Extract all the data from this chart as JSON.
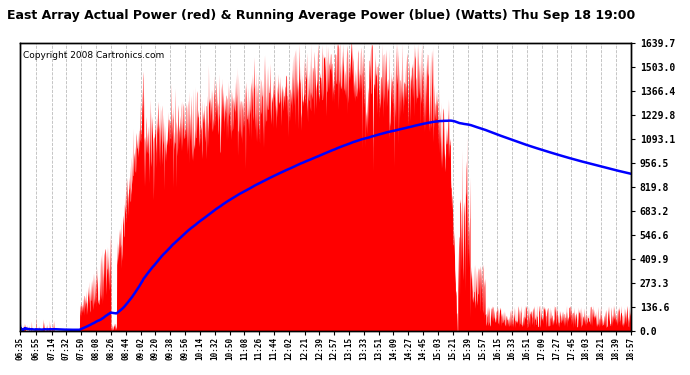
{
  "title": "East Array Actual Power (red) & Running Average Power (blue) (Watts) Thu Sep 18 19:00",
  "copyright": "Copyright 2008 Cartronics.com",
  "ylabel_right_values": [
    1639.7,
    1503.0,
    1366.4,
    1229.8,
    1093.1,
    956.5,
    819.8,
    683.2,
    546.6,
    409.9,
    273.3,
    136.6,
    0.0
  ],
  "ymax": 1639.7,
  "ymin": 0.0,
  "background_color": "#ffffff",
  "grid_color": "#bbbbbb",
  "actual_color": "#ff0000",
  "avg_color": "#0000ff",
  "title_fontsize": 9,
  "copyright_fontsize": 6.5,
  "x_tick_labels": [
    "06:35",
    "06:55",
    "07:14",
    "07:32",
    "07:50",
    "08:08",
    "08:26",
    "08:44",
    "09:02",
    "09:20",
    "09:38",
    "09:56",
    "10:14",
    "10:32",
    "10:50",
    "11:08",
    "11:26",
    "11:44",
    "12:02",
    "12:21",
    "12:39",
    "12:57",
    "13:15",
    "13:33",
    "13:51",
    "14:09",
    "14:27",
    "14:45",
    "15:03",
    "15:21",
    "15:39",
    "15:57",
    "16:15",
    "16:33",
    "16:51",
    "17:09",
    "17:27",
    "17:45",
    "18:03",
    "18:21",
    "18:39",
    "18:57"
  ]
}
